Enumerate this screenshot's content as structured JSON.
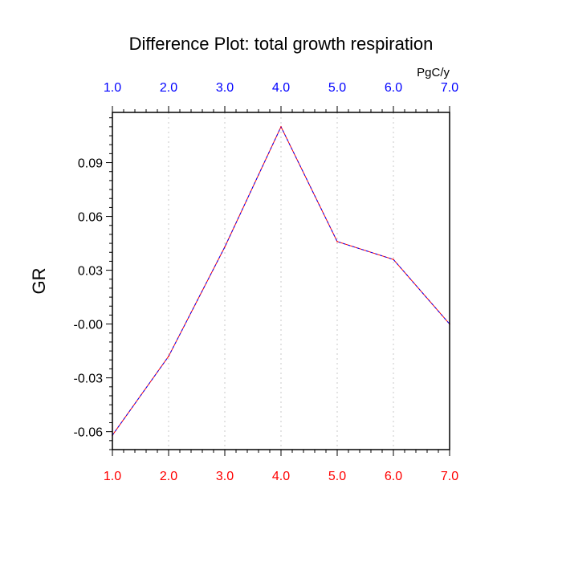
{
  "chart_data": {
    "type": "line",
    "title": "Difference Plot: total growth respiration",
    "ylabel": "GR",
    "top_axis_units": "PgC/y",
    "x": [
      1.0,
      2.0,
      3.0,
      4.0,
      5.0,
      6.0,
      7.0
    ],
    "xlim": [
      1.0,
      7.0
    ],
    "x_tick_labels": [
      "1.0",
      "2.0",
      "3.0",
      "4.0",
      "5.0",
      "6.0",
      "7.0"
    ],
    "ylim": [
      -0.07,
      0.118
    ],
    "y_ticks": [
      0.09,
      0.06,
      0.03,
      -0.0,
      -0.03,
      -0.06
    ],
    "y_tick_labels": [
      "0.09",
      "0.06",
      "0.03",
      "-0.00",
      "-0.03",
      "-0.06"
    ],
    "series": [
      {
        "values": [
          -0.062,
          -0.018,
          0.043,
          0.11,
          0.046,
          0.036,
          0.0
        ]
      }
    ],
    "grid": "vertical dotted",
    "colors": {
      "line_primary": "#ff0000",
      "line_secondary": "#0000ff",
      "top_tick_labels": "#0000ff",
      "bottom_tick_labels": "#ff0000",
      "grid": "#c8c8c8",
      "axis": "#000000"
    }
  }
}
